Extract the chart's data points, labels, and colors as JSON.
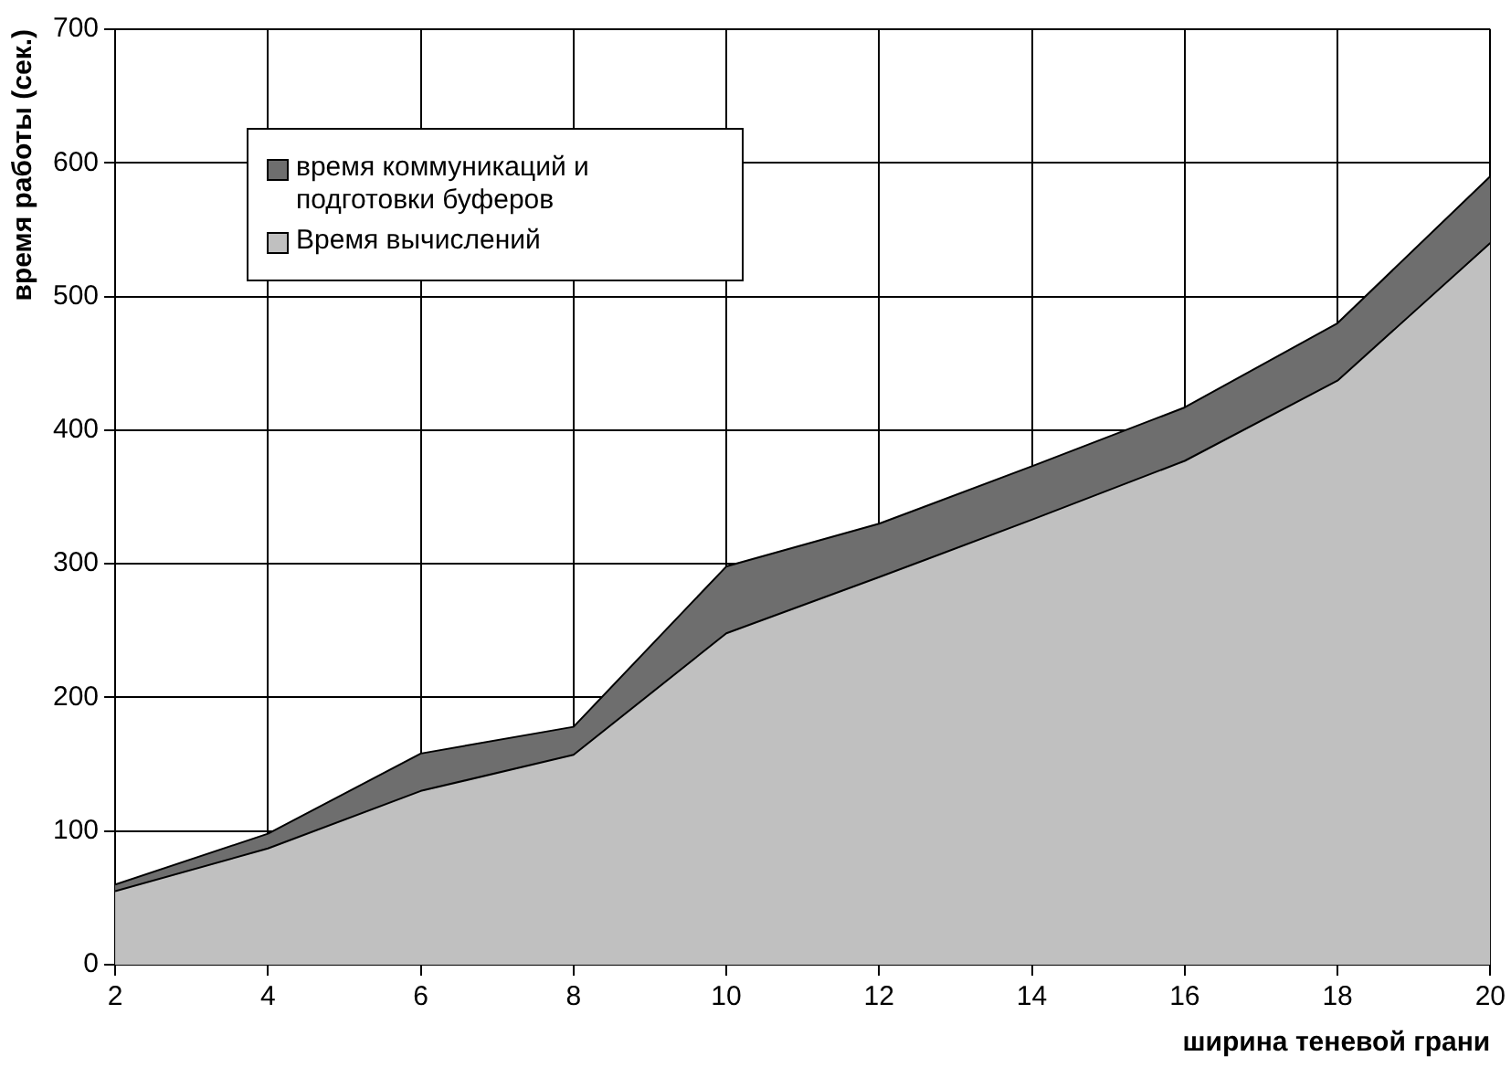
{
  "chart_data": {
    "type": "area",
    "stacked": true,
    "xlabel": "ширина теневой грани",
    "ylabel": "время работы (сек.)",
    "x": [
      2,
      4,
      6,
      8,
      10,
      12,
      14,
      16,
      18,
      20
    ],
    "series": [
      {
        "name": "Время вычислений",
        "color": "#c0c0c0",
        "values": [
          55,
          87,
          130,
          157,
          248,
          290,
          333,
          377,
          437,
          540
        ]
      },
      {
        "name": "время коммуникаций и подготовки буферов",
        "color": "#6e6e6e",
        "values": [
          5,
          11,
          28,
          21,
          50,
          40,
          40,
          40,
          43,
          50
        ]
      }
    ],
    "xlim": [
      2,
      20
    ],
    "xticks": [
      2,
      4,
      6,
      8,
      10,
      12,
      14,
      16,
      18,
      20
    ],
    "ylim": [
      0,
      700
    ],
    "yticks": [
      0,
      100,
      200,
      300,
      400,
      500,
      600,
      700
    ],
    "grid": true,
    "legend": "top left"
  }
}
